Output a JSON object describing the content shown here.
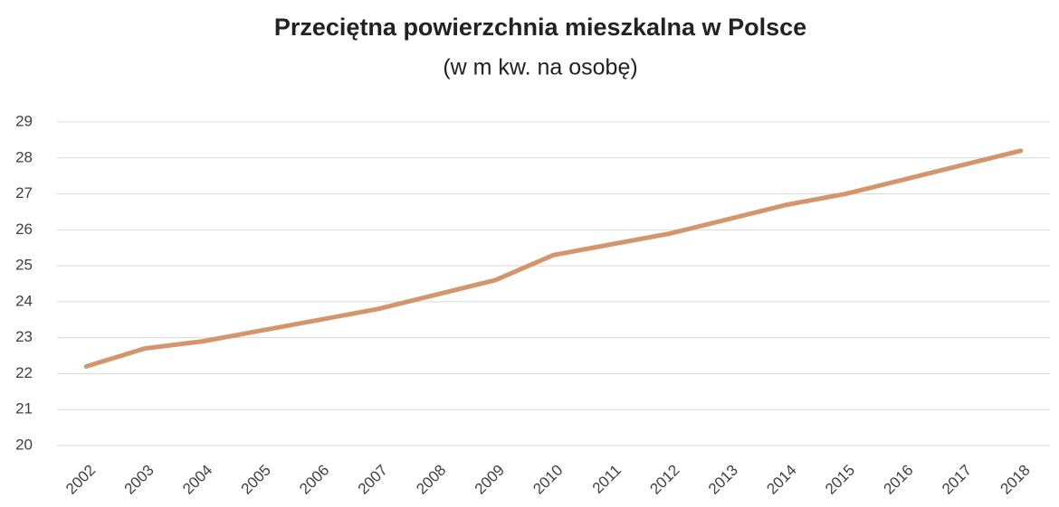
{
  "chart_data": {
    "type": "line",
    "title": "Przeciętna powierzchnia mieszkalna w Polsce",
    "subtitle": "(w m kw. na osobę)",
    "categories": [
      "2002",
      "2003",
      "2004",
      "2005",
      "2006",
      "2007",
      "2008",
      "2009",
      "2010",
      "2011",
      "2012",
      "2013",
      "2014",
      "2015",
      "2016",
      "2017",
      "2018"
    ],
    "series": [
      {
        "name": "Powierzchnia",
        "color": "#d4956a",
        "values": [
          22.2,
          22.7,
          22.9,
          23.2,
          23.5,
          23.8,
          24.2,
          24.6,
          25.3,
          25.6,
          25.9,
          26.3,
          26.7,
          27.0,
          27.4,
          27.8,
          28.2
        ]
      }
    ],
    "ylim": [
      20,
      29
    ],
    "yticks": [
      20,
      21,
      22,
      23,
      24,
      25,
      26,
      27,
      28,
      29
    ],
    "grid": true
  }
}
